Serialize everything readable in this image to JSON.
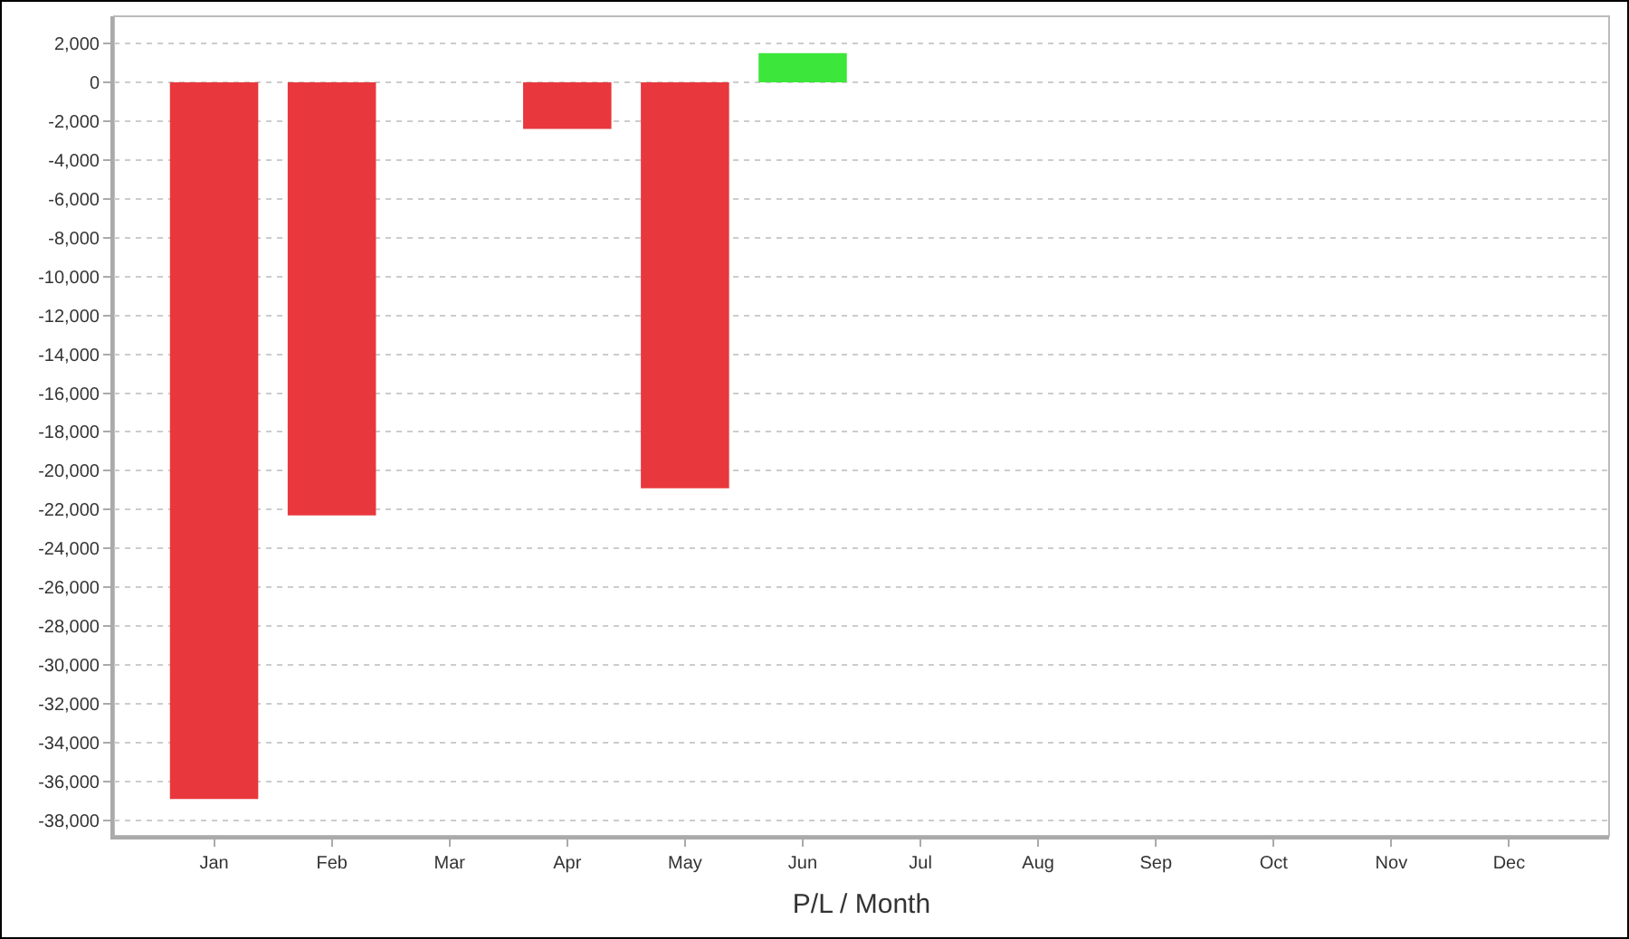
{
  "chart_data": {
    "type": "bar",
    "xlabel": "P/L / Month",
    "categories": [
      "Jan",
      "Feb",
      "Mar",
      "Apr",
      "May",
      "Jun",
      "Jul",
      "Aug",
      "Sep",
      "Oct",
      "Nov",
      "Dec"
    ],
    "values": [
      -36900,
      -22300,
      null,
      -2400,
      -20900,
      1500,
      null,
      null,
      null,
      null,
      null,
      null
    ],
    "colors": [
      "#e8383d",
      "#e8383d",
      "#e8383d",
      "#e8383d",
      "#e8383d",
      "#3de63a",
      "#e8383d",
      "#e8383d",
      "#e8383d",
      "#e8383d",
      "#e8383d",
      "#e8383d"
    ],
    "ylim": [
      -38800,
      3400
    ],
    "yticks": [
      {
        "value": 2000,
        "label": "2,000"
      },
      0,
      {
        "value": -2000,
        "label": "-2,000"
      },
      {
        "value": -4000,
        "label": "-4,000"
      },
      {
        "value": -6000,
        "label": "-6,000"
      },
      {
        "value": -8000,
        "label": "-8,000"
      },
      {
        "value": -10000,
        "label": "-10,000"
      },
      {
        "value": -12000,
        "label": "-12,000"
      },
      {
        "value": -14000,
        "label": "-14,000"
      },
      {
        "value": -16000,
        "label": "-16,000"
      },
      {
        "value": -18000,
        "label": "-18,000"
      },
      {
        "value": -20000,
        "label": "-20,000"
      },
      {
        "value": -22000,
        "label": "-22,000"
      },
      {
        "value": -24000,
        "label": "-24,000"
      },
      {
        "value": -26000,
        "label": "-26,000"
      },
      {
        "value": -28000,
        "label": "-28,000"
      },
      {
        "value": -30000,
        "label": "-30,000"
      },
      {
        "value": -32000,
        "label": "-32,000"
      },
      {
        "value": -34000,
        "label": "-34,000"
      },
      {
        "value": -36000,
        "label": "-36,000"
      },
      {
        "value": -38000,
        "label": "-38,000"
      }
    ],
    "grid": "y"
  }
}
